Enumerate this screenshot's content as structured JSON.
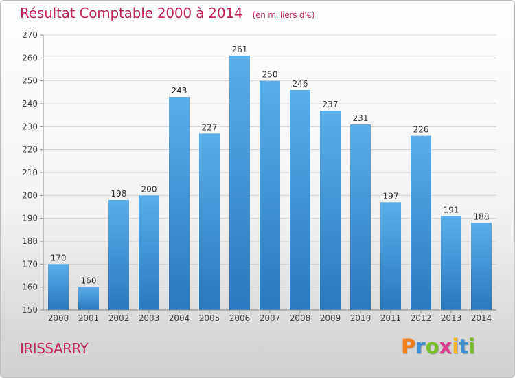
{
  "header": {
    "title": "Résultat Comptable 2000 à 2014",
    "subtitle": "(en milliers d'€)"
  },
  "footer": {
    "town": "IRISSARRY",
    "logo_letters": [
      "P",
      "r",
      "o",
      "x",
      "i",
      "t",
      "i"
    ],
    "logo_colors": [
      "#f07d1a",
      "#3c8fd6",
      "#7bbf2a",
      "#e03b8f",
      "#f2b417",
      "#3c8fd6",
      "#7bbf2a"
    ]
  },
  "chart_data": {
    "type": "bar",
    "categories": [
      "2000",
      "2001",
      "2002",
      "2003",
      "2004",
      "2005",
      "2006",
      "2007",
      "2008",
      "2009",
      "2010",
      "2011",
      "2012",
      "2013",
      "2014"
    ],
    "values": [
      170,
      160,
      198,
      200,
      243,
      227,
      261,
      250,
      246,
      237,
      231,
      197,
      226,
      191,
      188
    ],
    "data_labels": [
      "170",
      "160",
      "198",
      "200",
      "243",
      "227",
      "261",
      "250",
      "246",
      "237",
      "231",
      "197",
      "226",
      "191",
      "188"
    ],
    "ylim": [
      150,
      270
    ],
    "yticks": [
      150,
      160,
      170,
      180,
      190,
      200,
      210,
      220,
      230,
      240,
      250,
      260,
      270
    ],
    "grid": true,
    "bar_color_top": "#5aaeea",
    "bar_color_bottom": "#2a78bd"
  }
}
